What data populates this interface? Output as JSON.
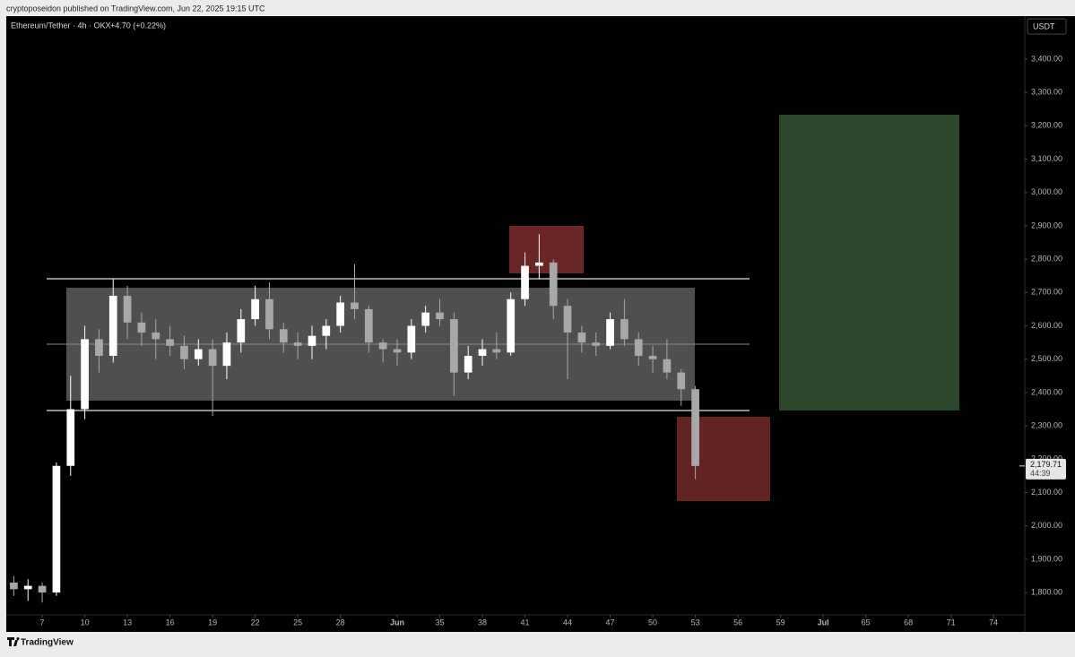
{
  "chart_data": {
    "type": "candlestick",
    "published": "cryptoposeidon published on TradingView.com, Jun 22, 2025 19:15 UTC",
    "symbol": "Ethereum/Tether · 4h · OKX",
    "change": "+4.70 (+0.22%)",
    "currency": "USDT",
    "brand": "TradingView",
    "countdown": "44:39",
    "last_price": {
      "value": 2179.71,
      "label": "2,179.71"
    },
    "up_color": "#ffffff",
    "down_color": "#a8a8a8",
    "xlim": [
      4.47,
      76.2
    ],
    "xticks": [
      7,
      10,
      13,
      16,
      19,
      22,
      25,
      28,
      {
        "value": 32,
        "label": "Jun"
      },
      35,
      38,
      41,
      44,
      47,
      50,
      53,
      56,
      59,
      {
        "value": 62,
        "label": "Jul"
      },
      65,
      68,
      71,
      74
    ],
    "ylim": [
      1733,
      3529
    ],
    "yticks": [
      {
        "value": 1800,
        "label": "1,800.00"
      },
      {
        "value": 1900,
        "label": "1,900.00"
      },
      {
        "value": 2000,
        "label": "2,000.00"
      },
      {
        "value": 2100,
        "label": "2,100.00"
      },
      {
        "value": 2200,
        "label": "2,200.00"
      },
      {
        "value": 2300,
        "label": "2,300.00"
      },
      {
        "value": 2400,
        "label": "2,400.00"
      },
      {
        "value": 2500,
        "label": "2,500.00"
      },
      {
        "value": 2600,
        "label": "2,600.00"
      },
      {
        "value": 2700,
        "label": "2,700.00"
      },
      {
        "value": 2800,
        "label": "2,800.00"
      },
      {
        "value": 2900,
        "label": "2,900.00"
      },
      {
        "value": 3000,
        "label": "3,000.00"
      },
      {
        "value": 3100,
        "label": "3,100.00"
      },
      {
        "value": 3200,
        "label": "3,200.00"
      },
      {
        "value": 3300,
        "label": "3,300.00"
      },
      {
        "value": 3400,
        "label": "3,400.00"
      }
    ],
    "x": [
      5,
      6,
      7,
      8,
      9,
      10,
      11,
      12,
      13,
      14,
      15,
      16,
      17,
      18,
      19,
      20,
      21,
      22,
      23,
      24,
      25,
      26,
      27,
      28,
      29,
      30,
      31,
      32,
      33,
      34,
      35,
      36,
      37,
      38,
      39,
      40,
      41,
      42,
      43,
      44,
      45,
      46,
      47,
      48,
      49,
      50,
      51,
      52,
      53
    ],
    "open": [
      1830,
      1810,
      1820,
      1800,
      2180,
      2350,
      2560,
      2510,
      2690,
      2610,
      2580,
      2560,
      2540,
      2500,
      2530,
      2480,
      2550,
      2620,
      2680,
      2590,
      2550,
      2540,
      2570,
      2600,
      2670,
      2650,
      2550,
      2530,
      2520,
      2600,
      2640,
      2620,
      2460,
      2510,
      2530,
      2520,
      2680,
      2780,
      2790,
      2660,
      2580,
      2550,
      2540,
      2620,
      2560,
      2510,
      2500,
      2460,
      2410
    ],
    "high": [
      1850,
      1840,
      1830,
      2190,
      2450,
      2600,
      2590,
      2740,
      2720,
      2640,
      2620,
      2600,
      2570,
      2560,
      2560,
      2580,
      2650,
      2720,
      2730,
      2610,
      2580,
      2600,
      2620,
      2690,
      2785,
      2660,
      2560,
      2560,
      2620,
      2660,
      2680,
      2640,
      2540,
      2560,
      2580,
      2700,
      2820,
      2875,
      2800,
      2680,
      2600,
      2580,
      2640,
      2680,
      2580,
      2540,
      2560,
      2470,
      2420
    ],
    "low": [
      1790,
      1775,
      1770,
      1790,
      2150,
      2320,
      2460,
      2490,
      2560,
      2540,
      2500,
      2510,
      2470,
      2480,
      2330,
      2440,
      2520,
      2600,
      2560,
      2520,
      2500,
      2500,
      2530,
      2580,
      2620,
      2520,
      2490,
      2480,
      2500,
      2580,
      2600,
      2390,
      2440,
      2480,
      2500,
      2510,
      2660,
      2740,
      2620,
      2440,
      2520,
      2510,
      2530,
      2540,
      2480,
      2460,
      2440,
      2360,
      2140
    ],
    "close": [
      1810,
      1820,
      1800,
      2180,
      2350,
      2560,
      2510,
      2690,
      2610,
      2580,
      2560,
      2540,
      2500,
      2530,
      2480,
      2550,
      2620,
      2680,
      2590,
      2550,
      2540,
      2570,
      2600,
      2670,
      2650,
      2550,
      2530,
      2520,
      2600,
      2640,
      2620,
      2460,
      2510,
      2530,
      2520,
      2680,
      2780,
      2790,
      2660,
      2580,
      2550,
      2540,
      2620,
      2560,
      2510,
      2500,
      2460,
      2410,
      2179.71
    ]
  }
}
